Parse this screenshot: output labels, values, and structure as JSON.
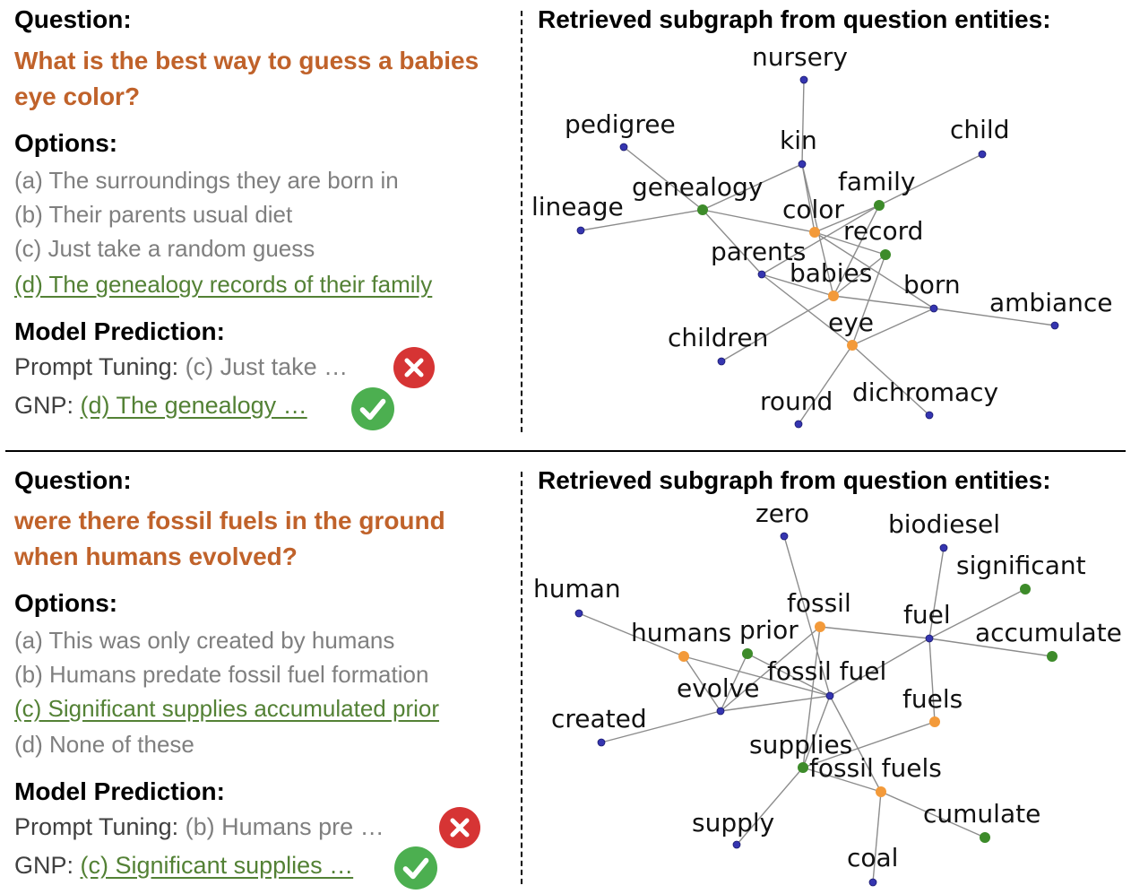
{
  "colors": {
    "question": "#c0622a",
    "correct": "#538135",
    "muted": "#7f7f7f",
    "node_blue": "#3535b0",
    "node_green": "#3d8b2a",
    "node_orange": "#f39a3a",
    "wrong": "#d63434",
    "right": "#4caf50"
  },
  "panels": [
    {
      "question_label": "Question:",
      "question": "What is the best way to guess a babies eye color?",
      "options_label": "Options:",
      "options": [
        {
          "text": "(a) The surroundings they are born in",
          "correct": false
        },
        {
          "text": "(b) Their parents usual diet",
          "correct": false
        },
        {
          "text": "(c) Just take a random guess",
          "correct": false
        },
        {
          "text": "(d) The genealogy records of their family",
          "correct": true
        }
      ],
      "prediction_label": "Model Prediction:",
      "predictions": [
        {
          "model": "Prompt Tuning:",
          "answer": "(c) Just take …",
          "correct": false,
          "icon": "wrong-icon"
        },
        {
          "model": "GNP:",
          "answer": "(d) The genealogy …",
          "correct": true,
          "icon": "check-icon"
        }
      ],
      "graph_title": "Retrieved subgraph from question entities:",
      "nodes": [
        {
          "id": "nursery",
          "label": "nursery",
          "color": "blue"
        },
        {
          "id": "pedigree",
          "label": "pedigree",
          "color": "blue"
        },
        {
          "id": "kin",
          "label": "kin",
          "color": "blue"
        },
        {
          "id": "child",
          "label": "child",
          "color": "blue"
        },
        {
          "id": "lineage",
          "label": "lineage",
          "color": "blue"
        },
        {
          "id": "genealogy",
          "label": "genealogy",
          "color": "green"
        },
        {
          "id": "family",
          "label": "family",
          "color": "green"
        },
        {
          "id": "color",
          "label": "color",
          "color": "orange"
        },
        {
          "id": "record",
          "label": "record",
          "color": "green"
        },
        {
          "id": "parents",
          "label": "parents",
          "color": "blue"
        },
        {
          "id": "babies",
          "label": "babies",
          "color": "orange"
        },
        {
          "id": "born",
          "label": "born",
          "color": "blue"
        },
        {
          "id": "ambiance",
          "label": "ambiance",
          "color": "blue"
        },
        {
          "id": "children",
          "label": "children",
          "color": "blue"
        },
        {
          "id": "eye",
          "label": "eye",
          "color": "orange"
        },
        {
          "id": "round",
          "label": "round",
          "color": "blue"
        },
        {
          "id": "dichromacy",
          "label": "dichromacy",
          "color": "blue"
        }
      ],
      "edges": [
        [
          "nursery",
          "kin"
        ],
        [
          "kin",
          "genealogy"
        ],
        [
          "kin",
          "color"
        ],
        [
          "kin",
          "babies"
        ],
        [
          "pedigree",
          "genealogy"
        ],
        [
          "lineage",
          "genealogy"
        ],
        [
          "child",
          "family"
        ],
        [
          "genealogy",
          "color"
        ],
        [
          "genealogy",
          "parents"
        ],
        [
          "family",
          "color"
        ],
        [
          "family",
          "parents"
        ],
        [
          "family",
          "babies"
        ],
        [
          "color",
          "record"
        ],
        [
          "color",
          "born"
        ],
        [
          "record",
          "eye"
        ],
        [
          "record",
          "babies"
        ],
        [
          "parents",
          "babies"
        ],
        [
          "parents",
          "eye"
        ],
        [
          "babies",
          "born"
        ],
        [
          "babies",
          "children"
        ],
        [
          "born",
          "ambiance"
        ],
        [
          "born",
          "eye"
        ],
        [
          "eye",
          "round"
        ],
        [
          "eye",
          "dichromacy"
        ]
      ]
    },
    {
      "question_label": "Question:",
      "question": "were there fossil fuels in the ground when humans evolved?",
      "options_label": "Options:",
      "options": [
        {
          "text": "(a) This was only created by humans",
          "correct": false
        },
        {
          "text": "(b) Humans predate fossil fuel formation",
          "correct": false
        },
        {
          "text": "(c) Significant supplies accumulated prior",
          "correct": true
        },
        {
          "text": "(d) None of these",
          "correct": false
        }
      ],
      "prediction_label": "Model Prediction:",
      "predictions": [
        {
          "model": "Prompt Tuning:",
          "answer": "(b) Humans pre …",
          "correct": false,
          "icon": "wrong-icon"
        },
        {
          "model": "GNP:",
          "answer": "(c) Significant supplies …",
          "correct": true,
          "icon": "check-icon"
        }
      ],
      "graph_title": "Retrieved subgraph from question entities:",
      "nodes": [
        {
          "id": "zero",
          "label": "zero",
          "color": "blue"
        },
        {
          "id": "biodiesel",
          "label": "biodiesel",
          "color": "blue"
        },
        {
          "id": "significant",
          "label": "significant",
          "color": "green"
        },
        {
          "id": "human",
          "label": "human",
          "color": "blue"
        },
        {
          "id": "fossil",
          "label": "fossil",
          "color": "orange"
        },
        {
          "id": "fuel",
          "label": "fuel",
          "color": "blue"
        },
        {
          "id": "humans",
          "label": "humans",
          "color": "orange"
        },
        {
          "id": "prior",
          "label": "prior",
          "color": "green"
        },
        {
          "id": "accumulate",
          "label": "accumulate",
          "color": "green"
        },
        {
          "id": "fossil_fuel",
          "label": "fossil fuel",
          "color": "blue"
        },
        {
          "id": "evolve",
          "label": "evolve",
          "color": "blue"
        },
        {
          "id": "fuels",
          "label": "fuels",
          "color": "orange"
        },
        {
          "id": "created",
          "label": "created",
          "color": "blue"
        },
        {
          "id": "supplies",
          "label": "supplies",
          "color": "green"
        },
        {
          "id": "fossil_fuels",
          "label": "fossil fuels",
          "color": "orange"
        },
        {
          "id": "supply",
          "label": "supply",
          "color": "blue"
        },
        {
          "id": "cumulate",
          "label": "cumulate",
          "color": "green"
        },
        {
          "id": "coal",
          "label": "coal",
          "color": "blue"
        }
      ],
      "edges": [
        [
          "zero",
          "fossil_fuel"
        ],
        [
          "biodiesel",
          "fuel"
        ],
        [
          "significant",
          "fuel"
        ],
        [
          "human",
          "humans"
        ],
        [
          "fossil",
          "fuel"
        ],
        [
          "fossil",
          "supplies"
        ],
        [
          "fossil",
          "evolve"
        ],
        [
          "fuel",
          "fossil_fuel"
        ],
        [
          "fuel",
          "accumulate"
        ],
        [
          "fuel",
          "fuels"
        ],
        [
          "humans",
          "evolve"
        ],
        [
          "humans",
          "fossil_fuel"
        ],
        [
          "prior",
          "fossil_fuel"
        ],
        [
          "fossil_fuel",
          "supplies"
        ],
        [
          "fossil_fuel",
          "fossil_fuels"
        ],
        [
          "fossil_fuel",
          "evolve"
        ],
        [
          "evolve",
          "created"
        ],
        [
          "evolve",
          "prior"
        ],
        [
          "supplies",
          "fuels"
        ],
        [
          "supplies",
          "supply"
        ],
        [
          "supplies",
          "fossil_fuels"
        ],
        [
          "fossil_fuels",
          "cumulate"
        ],
        [
          "fossil_fuels",
          "coal"
        ]
      ]
    }
  ]
}
